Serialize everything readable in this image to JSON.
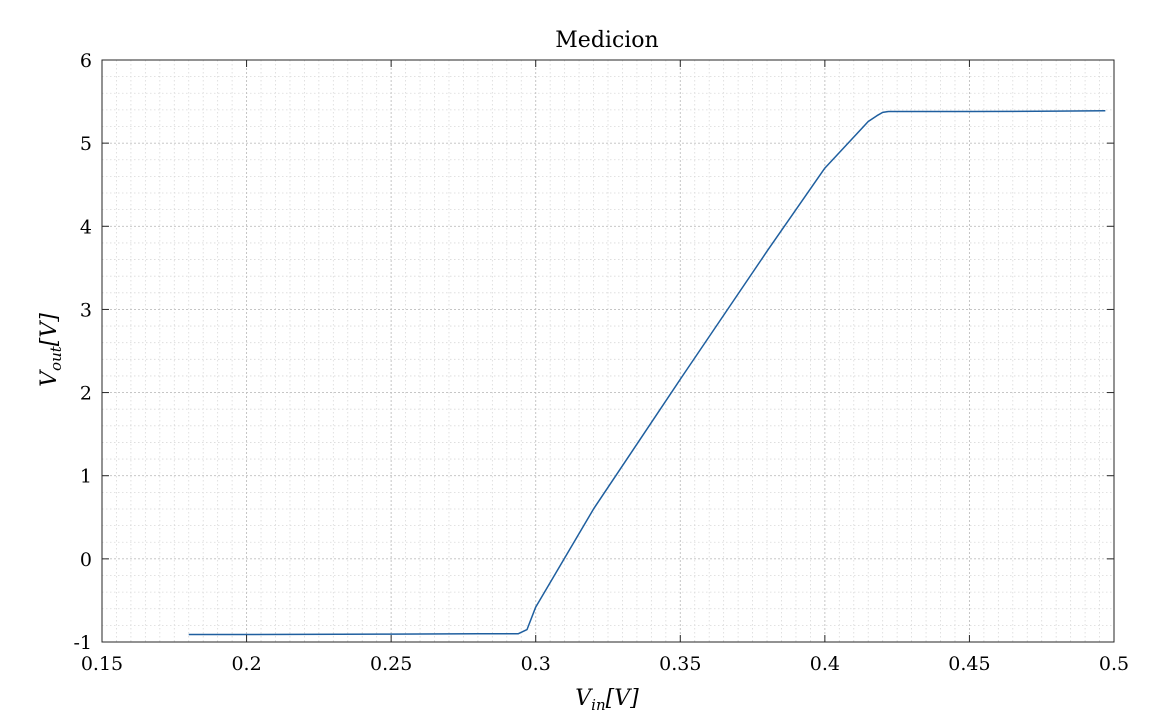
{
  "chart_data": {
    "type": "line",
    "title": "Medicion",
    "xlabel": {
      "main": "V",
      "sub": "in",
      "unit": "[V]"
    },
    "ylabel": {
      "main": "V",
      "sub": "out",
      "unit": "[V]"
    },
    "xlim": [
      0.15,
      0.5
    ],
    "ylim": [
      -1,
      6
    ],
    "xticks": [
      0.15,
      0.2,
      0.25,
      0.3,
      0.35,
      0.4,
      0.45,
      0.5
    ],
    "yticks": [
      -1,
      0,
      1,
      2,
      3,
      4,
      5,
      6
    ],
    "xtick_labels": [
      "0.15",
      "0.2",
      "0.25",
      "0.3",
      "0.35",
      "0.4",
      "0.45",
      "0.5"
    ],
    "ytick_labels": [
      "-1",
      "0",
      "1",
      "2",
      "3",
      "4",
      "5",
      "6"
    ],
    "grid": true,
    "minor_grid": true,
    "legend": false,
    "line_color": "#1f5f9f",
    "series": [
      {
        "x": [
          0.18,
          0.2,
          0.25,
          0.28,
          0.294,
          0.297,
          0.3,
          0.32,
          0.35,
          0.38,
          0.4,
          0.415,
          0.418,
          0.42,
          0.422,
          0.45,
          0.48,
          0.497
        ],
        "y": [
          -0.91,
          -0.91,
          -0.905,
          -0.9,
          -0.9,
          -0.85,
          -0.58,
          0.6,
          2.16,
          3.7,
          4.7,
          5.26,
          5.33,
          5.37,
          5.38,
          5.38,
          5.385,
          5.39
        ]
      }
    ]
  }
}
